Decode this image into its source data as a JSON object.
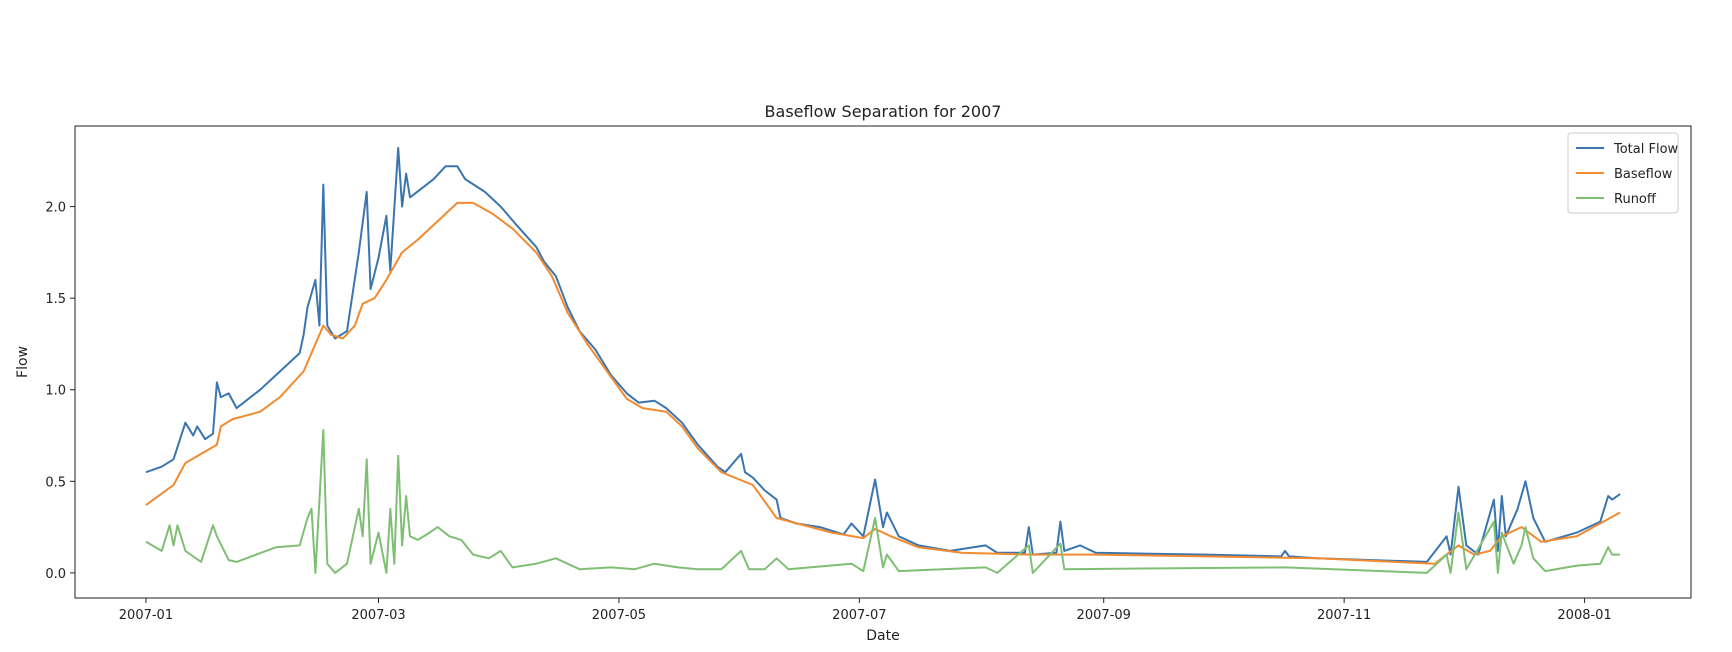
{
  "chart_data": {
    "type": "line",
    "title": "Baseflow Separation for 2007",
    "xlabel": "Date",
    "ylabel": "Flow",
    "xlim": [
      "2006-12-14",
      "2008-01-28"
    ],
    "ylim": [
      -0.137,
      2.44
    ],
    "x_ticks": [
      "2007-01",
      "2007-03",
      "2007-05",
      "2007-07",
      "2007-09",
      "2007-11",
      "2008-01"
    ],
    "y_ticks": [
      "0.0",
      "0.5",
      "1.0",
      "1.5",
      "2.0"
    ],
    "grid": false,
    "legend_placement": "top-right",
    "series": [
      {
        "name": "Total Flow",
        "color": "#3a75b0",
        "points": [
          [
            "2007-01-01",
            0.55
          ],
          [
            "2007-01-05",
            0.58
          ],
          [
            "2007-01-08",
            0.62
          ],
          [
            "2007-01-11",
            0.82
          ],
          [
            "2007-01-13",
            0.75
          ],
          [
            "2007-01-14",
            0.8
          ],
          [
            "2007-01-16",
            0.73
          ],
          [
            "2007-01-18",
            0.76
          ],
          [
            "2007-01-19",
            1.04
          ],
          [
            "2007-01-20",
            0.96
          ],
          [
            "2007-01-22",
            0.98
          ],
          [
            "2007-01-24",
            0.9
          ],
          [
            "2007-01-30",
            1.0
          ],
          [
            "2007-02-04",
            1.1
          ],
          [
            "2007-02-09",
            1.2
          ],
          [
            "2007-02-10",
            1.3
          ],
          [
            "2007-02-11",
            1.45
          ],
          [
            "2007-02-13",
            1.6
          ],
          [
            "2007-02-14",
            1.35
          ],
          [
            "2007-02-15",
            2.12
          ],
          [
            "2007-02-16",
            1.35
          ],
          [
            "2007-02-18",
            1.28
          ],
          [
            "2007-02-21",
            1.32
          ],
          [
            "2007-02-24",
            1.75
          ],
          [
            "2007-02-26",
            2.08
          ],
          [
            "2007-02-27",
            1.55
          ],
          [
            "2007-03-01",
            1.72
          ],
          [
            "2007-03-03",
            1.95
          ],
          [
            "2007-03-04",
            1.65
          ],
          [
            "2007-03-06",
            2.32
          ],
          [
            "2007-03-07",
            2.0
          ],
          [
            "2007-03-08",
            2.18
          ],
          [
            "2007-03-09",
            2.05
          ],
          [
            "2007-03-12",
            2.1
          ],
          [
            "2007-03-15",
            2.15
          ],
          [
            "2007-03-18",
            2.22
          ],
          [
            "2007-03-21",
            2.22
          ],
          [
            "2007-03-23",
            2.15
          ],
          [
            "2007-03-28",
            2.08
          ],
          [
            "2007-04-01",
            2.0
          ],
          [
            "2007-04-05",
            1.9
          ],
          [
            "2007-04-10",
            1.78
          ],
          [
            "2007-04-12",
            1.7
          ],
          [
            "2007-04-15",
            1.62
          ],
          [
            "2007-04-18",
            1.45
          ],
          [
            "2007-04-21",
            1.32
          ],
          [
            "2007-04-25",
            1.22
          ],
          [
            "2007-04-29",
            1.08
          ],
          [
            "2007-05-03",
            0.98
          ],
          [
            "2007-05-06",
            0.93
          ],
          [
            "2007-05-10",
            0.94
          ],
          [
            "2007-05-13",
            0.9
          ],
          [
            "2007-05-17",
            0.82
          ],
          [
            "2007-05-21",
            0.7
          ],
          [
            "2007-05-26",
            0.58
          ],
          [
            "2007-05-28",
            0.55
          ],
          [
            "2007-06-01",
            0.65
          ],
          [
            "2007-06-02",
            0.55
          ],
          [
            "2007-06-04",
            0.52
          ],
          [
            "2007-06-07",
            0.45
          ],
          [
            "2007-06-10",
            0.4
          ],
          [
            "2007-06-11",
            0.3
          ],
          [
            "2007-06-15",
            0.27
          ],
          [
            "2007-06-21",
            0.25
          ],
          [
            "2007-06-27",
            0.21
          ],
          [
            "2007-06-29",
            0.27
          ],
          [
            "2007-07-02",
            0.2
          ],
          [
            "2007-07-05",
            0.51
          ],
          [
            "2007-07-07",
            0.25
          ],
          [
            "2007-07-08",
            0.33
          ],
          [
            "2007-07-11",
            0.2
          ],
          [
            "2007-07-16",
            0.15
          ],
          [
            "2007-07-24",
            0.12
          ],
          [
            "2007-08-02",
            0.15
          ],
          [
            "2007-08-05",
            0.11
          ],
          [
            "2007-08-12",
            0.11
          ],
          [
            "2007-08-13",
            0.25
          ],
          [
            "2007-08-14",
            0.1
          ],
          [
            "2007-08-20",
            0.11
          ],
          [
            "2007-08-21",
            0.28
          ],
          [
            "2007-08-22",
            0.12
          ],
          [
            "2007-08-26",
            0.15
          ],
          [
            "2007-08-30",
            0.11
          ],
          [
            "2007-09-27",
            0.1
          ],
          [
            "2007-10-16",
            0.09
          ],
          [
            "2007-10-17",
            0.12
          ],
          [
            "2007-10-18",
            0.09
          ],
          [
            "2007-10-25",
            0.08
          ],
          [
            "2007-11-22",
            0.06
          ],
          [
            "2007-11-27",
            0.2
          ],
          [
            "2007-11-28",
            0.1
          ],
          [
            "2007-11-30",
            0.47
          ],
          [
            "2007-12-02",
            0.15
          ],
          [
            "2007-12-05",
            0.1
          ],
          [
            "2007-12-09",
            0.4
          ],
          [
            "2007-12-10",
            0.12
          ],
          [
            "2007-12-11",
            0.42
          ],
          [
            "2007-12-12",
            0.2
          ],
          [
            "2007-12-15",
            0.35
          ],
          [
            "2007-12-17",
            0.5
          ],
          [
            "2007-12-19",
            0.3
          ],
          [
            "2007-12-22",
            0.17
          ],
          [
            "2007-12-30",
            0.22
          ],
          [
            "2008-01-05",
            0.28
          ],
          [
            "2008-01-07",
            0.42
          ],
          [
            "2008-01-08",
            0.4
          ],
          [
            "2008-01-10",
            0.43
          ]
        ]
      },
      {
        "name": "Baseflow",
        "color": "#f28a30",
        "points": [
          [
            "2007-01-01",
            0.37
          ],
          [
            "2007-01-08",
            0.48
          ],
          [
            "2007-01-11",
            0.6
          ],
          [
            "2007-01-15",
            0.65
          ],
          [
            "2007-01-19",
            0.7
          ],
          [
            "2007-01-20",
            0.8
          ],
          [
            "2007-01-23",
            0.84
          ],
          [
            "2007-01-30",
            0.88
          ],
          [
            "2007-02-04",
            0.96
          ],
          [
            "2007-02-10",
            1.1
          ],
          [
            "2007-02-13",
            1.25
          ],
          [
            "2007-02-15",
            1.35
          ],
          [
            "2007-02-17",
            1.3
          ],
          [
            "2007-02-20",
            1.28
          ],
          [
            "2007-02-23",
            1.35
          ],
          [
            "2007-02-25",
            1.47
          ],
          [
            "2007-02-28",
            1.5
          ],
          [
            "2007-03-03",
            1.6
          ],
          [
            "2007-03-07",
            1.75
          ],
          [
            "2007-03-11",
            1.82
          ],
          [
            "2007-03-15",
            1.9
          ],
          [
            "2007-03-21",
            2.02
          ],
          [
            "2007-03-25",
            2.02
          ],
          [
            "2007-03-30",
            1.96
          ],
          [
            "2007-04-04",
            1.88
          ],
          [
            "2007-04-10",
            1.75
          ],
          [
            "2007-04-14",
            1.62
          ],
          [
            "2007-04-18",
            1.42
          ],
          [
            "2007-04-23",
            1.25
          ],
          [
            "2007-04-29",
            1.07
          ],
          [
            "2007-05-03",
            0.95
          ],
          [
            "2007-05-07",
            0.9
          ],
          [
            "2007-05-13",
            0.88
          ],
          [
            "2007-05-17",
            0.8
          ],
          [
            "2007-05-21",
            0.68
          ],
          [
            "2007-05-27",
            0.55
          ],
          [
            "2007-06-04",
            0.48
          ],
          [
            "2007-06-10",
            0.3
          ],
          [
            "2007-06-24",
            0.22
          ],
          [
            "2007-07-02",
            0.19
          ],
          [
            "2007-07-05",
            0.24
          ],
          [
            "2007-07-09",
            0.2
          ],
          [
            "2007-07-16",
            0.14
          ],
          [
            "2007-07-27",
            0.11
          ],
          [
            "2007-08-13",
            0.1
          ],
          [
            "2007-08-30",
            0.1
          ],
          [
            "2007-09-27",
            0.09
          ],
          [
            "2007-10-25",
            0.08
          ],
          [
            "2007-11-24",
            0.05
          ],
          [
            "2007-11-30",
            0.15
          ],
          [
            "2007-12-04",
            0.1
          ],
          [
            "2007-12-08",
            0.12
          ],
          [
            "2007-12-11",
            0.2
          ],
          [
            "2007-12-16",
            0.25
          ],
          [
            "2007-12-21",
            0.17
          ],
          [
            "2007-12-30",
            0.2
          ],
          [
            "2008-01-10",
            0.33
          ]
        ]
      },
      {
        "name": "Runoff",
        "color": "#7fbf74",
        "points": [
          [
            "2007-01-01",
            0.17
          ],
          [
            "2007-01-05",
            0.12
          ],
          [
            "2007-01-07",
            0.26
          ],
          [
            "2007-01-08",
            0.15
          ],
          [
            "2007-01-09",
            0.26
          ],
          [
            "2007-01-11",
            0.12
          ],
          [
            "2007-01-15",
            0.06
          ],
          [
            "2007-01-18",
            0.26
          ],
          [
            "2007-01-19",
            0.2
          ],
          [
            "2007-01-22",
            0.07
          ],
          [
            "2007-01-24",
            0.06
          ],
          [
            "2007-01-29",
            0.1
          ],
          [
            "2007-02-03",
            0.14
          ],
          [
            "2007-02-09",
            0.15
          ],
          [
            "2007-02-11",
            0.3
          ],
          [
            "2007-02-12",
            0.35
          ],
          [
            "2007-02-13",
            0.0
          ],
          [
            "2007-02-15",
            0.78
          ],
          [
            "2007-02-16",
            0.05
          ],
          [
            "2007-02-18",
            0.0
          ],
          [
            "2007-02-21",
            0.05
          ],
          [
            "2007-02-24",
            0.35
          ],
          [
            "2007-02-25",
            0.2
          ],
          [
            "2007-02-26",
            0.62
          ],
          [
            "2007-02-27",
            0.05
          ],
          [
            "2007-03-01",
            0.22
          ],
          [
            "2007-03-03",
            0.0
          ],
          [
            "2007-03-04",
            0.35
          ],
          [
            "2007-03-05",
            0.05
          ],
          [
            "2007-03-06",
            0.64
          ],
          [
            "2007-03-07",
            0.15
          ],
          [
            "2007-03-08",
            0.42
          ],
          [
            "2007-03-09",
            0.2
          ],
          [
            "2007-03-11",
            0.18
          ],
          [
            "2007-03-14",
            0.22
          ],
          [
            "2007-03-16",
            0.25
          ],
          [
            "2007-03-19",
            0.2
          ],
          [
            "2007-03-22",
            0.18
          ],
          [
            "2007-03-25",
            0.1
          ],
          [
            "2007-03-29",
            0.08
          ],
          [
            "2007-04-01",
            0.12
          ],
          [
            "2007-04-04",
            0.03
          ],
          [
            "2007-04-10",
            0.05
          ],
          [
            "2007-04-15",
            0.08
          ],
          [
            "2007-04-21",
            0.02
          ],
          [
            "2007-04-29",
            0.03
          ],
          [
            "2007-05-05",
            0.02
          ],
          [
            "2007-05-10",
            0.05
          ],
          [
            "2007-05-16",
            0.03
          ],
          [
            "2007-05-21",
            0.02
          ],
          [
            "2007-05-27",
            0.02
          ],
          [
            "2007-06-01",
            0.12
          ],
          [
            "2007-06-03",
            0.02
          ],
          [
            "2007-06-07",
            0.02
          ],
          [
            "2007-06-10",
            0.08
          ],
          [
            "2007-06-13",
            0.02
          ],
          [
            "2007-06-29",
            0.05
          ],
          [
            "2007-07-02",
            0.01
          ],
          [
            "2007-07-05",
            0.3
          ],
          [
            "2007-07-07",
            0.03
          ],
          [
            "2007-07-08",
            0.1
          ],
          [
            "2007-07-11",
            0.01
          ],
          [
            "2007-08-02",
            0.03
          ],
          [
            "2007-08-05",
            0.0
          ],
          [
            "2007-08-13",
            0.15
          ],
          [
            "2007-08-14",
            0.0
          ],
          [
            "2007-08-21",
            0.16
          ],
          [
            "2007-08-22",
            0.02
          ],
          [
            "2007-10-17",
            0.03
          ],
          [
            "2007-11-22",
            0.0
          ],
          [
            "2007-11-27",
            0.1
          ],
          [
            "2007-11-28",
            0.0
          ],
          [
            "2007-11-30",
            0.33
          ],
          [
            "2007-12-02",
            0.02
          ],
          [
            "2007-12-09",
            0.28
          ],
          [
            "2007-12-10",
            0.0
          ],
          [
            "2007-12-11",
            0.22
          ],
          [
            "2007-12-14",
            0.05
          ],
          [
            "2007-12-16",
            0.15
          ],
          [
            "2007-12-17",
            0.25
          ],
          [
            "2007-12-19",
            0.08
          ],
          [
            "2007-12-22",
            0.01
          ],
          [
            "2007-12-30",
            0.04
          ],
          [
            "2008-01-05",
            0.05
          ],
          [
            "2008-01-07",
            0.14
          ],
          [
            "2008-01-08",
            0.1
          ],
          [
            "2008-01-10",
            0.1
          ]
        ]
      }
    ]
  }
}
